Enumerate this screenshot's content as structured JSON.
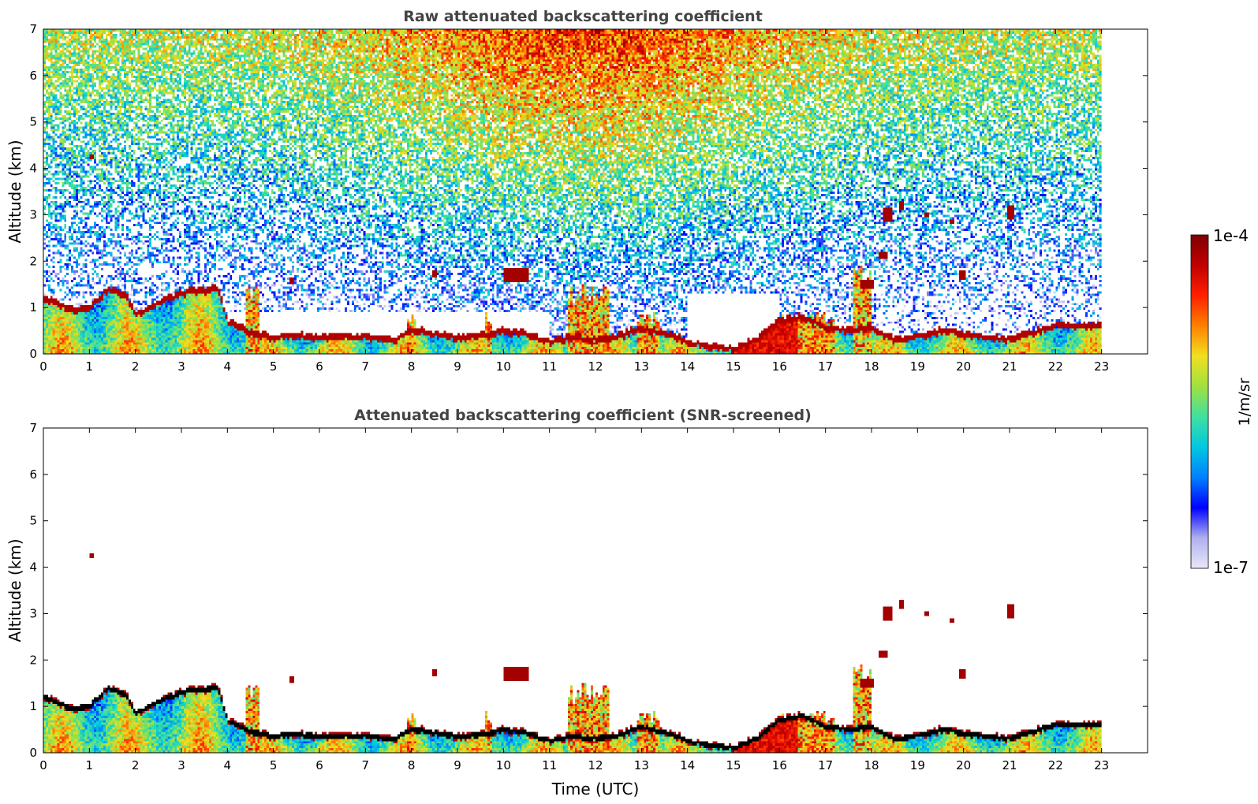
{
  "chart_data": [
    {
      "type": "heatmap",
      "title": "Raw attenuated backscattering coefficient",
      "xlabel": "",
      "ylabel": "Altitude (km)",
      "xlim": [
        0,
        24
      ],
      "ylim": [
        0,
        7
      ],
      "x_ticks": [
        "0",
        "1",
        "2",
        "3",
        "4",
        "5",
        "6",
        "7",
        "8",
        "9",
        "10",
        "11",
        "12",
        "13",
        "14",
        "15",
        "16",
        "17",
        "18",
        "19",
        "20",
        "21",
        "22",
        "23"
      ],
      "y_ticks": [
        "0",
        "1",
        "2",
        "3",
        "4",
        "5",
        "6",
        "7"
      ],
      "data_end_hour": 23,
      "noise": true,
      "features": {
        "boundary_layer": [
          [
            0,
            1.2
          ],
          [
            0.6,
            0.95
          ],
          [
            1.0,
            1.0
          ],
          [
            1.4,
            1.38
          ],
          [
            1.8,
            1.25
          ],
          [
            2.0,
            0.85
          ],
          [
            2.6,
            1.15
          ],
          [
            3.0,
            1.3
          ],
          [
            3.8,
            1.4
          ],
          [
            4.0,
            0.7
          ],
          [
            4.5,
            0.45
          ],
          [
            5.0,
            0.35
          ],
          [
            5.5,
            0.4
          ],
          [
            6,
            0.35
          ],
          [
            7,
            0.35
          ],
          [
            7.6,
            0.28
          ],
          [
            8,
            0.5
          ],
          [
            9,
            0.35
          ],
          [
            9.6,
            0.38
          ],
          [
            10,
            0.5
          ],
          [
            10.6,
            0.4
          ],
          [
            11,
            0.25
          ],
          [
            11.5,
            0.35
          ],
          [
            12,
            0.3
          ],
          [
            12.5,
            0.38
          ],
          [
            13,
            0.55
          ],
          [
            13.5,
            0.45
          ],
          [
            14,
            0.25
          ],
          [
            14.5,
            0.15
          ],
          [
            15,
            0.1
          ],
          [
            15.5,
            0.3
          ],
          [
            16,
            0.7
          ],
          [
            16.5,
            0.8
          ],
          [
            17,
            0.55
          ],
          [
            17.5,
            0.5
          ],
          [
            18,
            0.55
          ],
          [
            18.5,
            0.3
          ],
          [
            19,
            0.35
          ],
          [
            19.6,
            0.5
          ],
          [
            20,
            0.4
          ],
          [
            21,
            0.3
          ],
          [
            21.5,
            0.45
          ],
          [
            22,
            0.6
          ],
          [
            23,
            0.6
          ]
        ],
        "clouds": [
          {
            "x0": 10.0,
            "x1": 10.55,
            "y0": 1.55,
            "y1": 1.85
          },
          {
            "x0": 1.0,
            "x1": 1.1,
            "y0": 4.2,
            "y1": 4.3
          },
          {
            "x0": 8.45,
            "x1": 8.55,
            "y0": 1.65,
            "y1": 1.8
          },
          {
            "x0": 5.35,
            "x1": 5.45,
            "y0": 1.5,
            "y1": 1.65
          },
          {
            "x0": 17.75,
            "x1": 18.05,
            "y0": 1.4,
            "y1": 1.6
          },
          {
            "x0": 18.25,
            "x1": 18.45,
            "y0": 2.85,
            "y1": 3.15
          },
          {
            "x0": 18.6,
            "x1": 18.72,
            "y0": 3.1,
            "y1": 3.3
          },
          {
            "x0": 19.15,
            "x1": 19.25,
            "y0": 2.95,
            "y1": 3.05
          },
          {
            "x0": 19.7,
            "x1": 19.8,
            "y0": 2.82,
            "y1": 2.92
          },
          {
            "x0": 20.95,
            "x1": 21.1,
            "y0": 2.9,
            "y1": 3.2
          },
          {
            "x0": 19.9,
            "x1": 20.05,
            "y0": 1.6,
            "y1": 1.8
          },
          {
            "x0": 18.15,
            "x1": 18.35,
            "y0": 2.05,
            "y1": 2.2
          }
        ],
        "plumes": [
          {
            "x0": 11.4,
            "x1": 12.3,
            "y1": 1.5
          },
          {
            "x0": 15.9,
            "x1": 17.2,
            "y1": 0.9
          },
          {
            "x0": 17.6,
            "x1": 18.0,
            "y1": 1.9
          },
          {
            "x0": 12.9,
            "x1": 13.4,
            "y1": 0.9
          },
          {
            "x0": 4.4,
            "x1": 4.7,
            "y1": 1.6
          },
          {
            "x0": 9.6,
            "x1": 9.75,
            "y1": 0.9
          },
          {
            "x0": 7.9,
            "x1": 8.1,
            "y1": 0.9
          }
        ]
      }
    },
    {
      "type": "heatmap",
      "title": "Attenuated backscattering coefficient (SNR-screened)",
      "xlabel": "Time (UTC)",
      "ylabel": "Altitude (km)",
      "xlim": [
        0,
        24
      ],
      "ylim": [
        0,
        7
      ],
      "x_ticks": [
        "0",
        "1",
        "2",
        "3",
        "4",
        "5",
        "6",
        "7",
        "8",
        "9",
        "10",
        "11",
        "12",
        "13",
        "14",
        "15",
        "16",
        "17",
        "18",
        "19",
        "20",
        "21",
        "22",
        "23"
      ],
      "y_ticks": [
        "0",
        "1",
        "2",
        "3",
        "4",
        "5",
        "6",
        "7"
      ],
      "data_end_hour": 23,
      "noise": false,
      "features": "same as raw, values below SNR threshold removed"
    }
  ],
  "colorbar": {
    "scale": "log",
    "min_label": "1e-7",
    "max_label": "1e-4",
    "unit_label": "1/m/sr",
    "colormap": [
      "#e8e8f8",
      "#b0b0f0",
      "#0000ff",
      "#0080ff",
      "#00c8e0",
      "#40e0a0",
      "#a0e040",
      "#f0e020",
      "#ff8000",
      "#ff2000",
      "#c00000",
      "#800000"
    ]
  }
}
